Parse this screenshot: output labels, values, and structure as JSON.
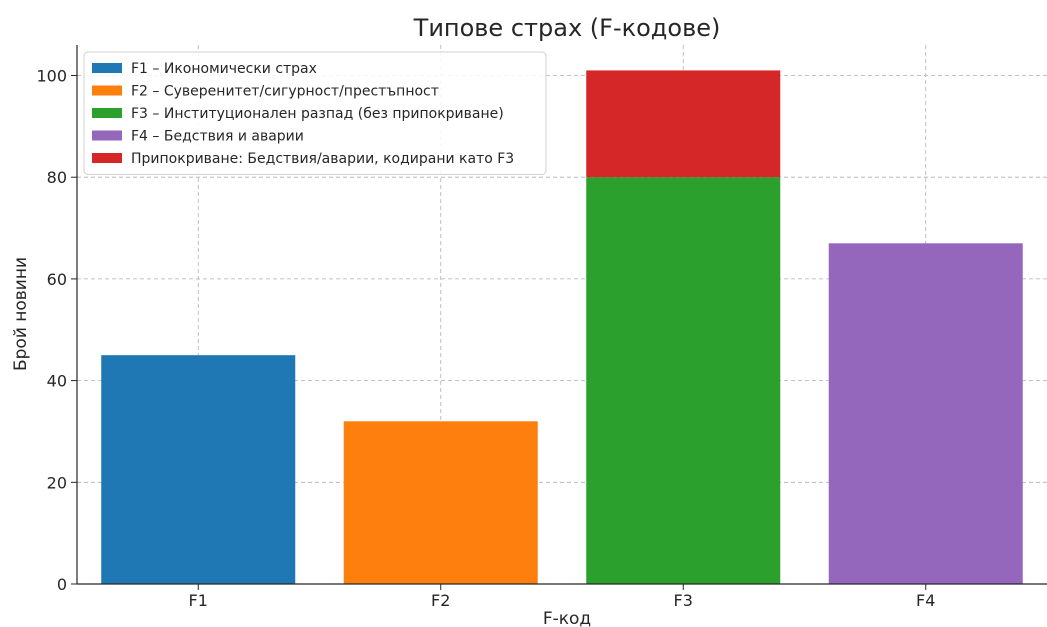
{
  "chart_data": {
    "type": "bar",
    "title": "Типове страх (F-кодове)",
    "xlabel": "F-код",
    "ylabel": "Брой новини",
    "categories": [
      "F1",
      "F2",
      "F3",
      "F4"
    ],
    "ylim": [
      0,
      106
    ],
    "yticks": [
      0,
      20,
      40,
      60,
      80,
      100
    ],
    "grid": true,
    "legend_position": "top-left",
    "series": [
      {
        "name": "F1 – Икономически страх",
        "color": "#1f77b4",
        "values": [
          45,
          0,
          0,
          0
        ]
      },
      {
        "name": "F2 – Суверенитет/сигурност/престъпност",
        "color": "#ff7f0e",
        "values": [
          0,
          32,
          0,
          0
        ]
      },
      {
        "name": "F3 – Институционален разпад (без припокриване)",
        "color": "#2ca02c",
        "values": [
          0,
          0,
          80,
          0
        ]
      },
      {
        "name": "F4 – Бедствия и аварии",
        "color": "#9467bd",
        "values": [
          0,
          0,
          0,
          67
        ]
      },
      {
        "name": "Припокриване: Бедствия/аварии, кодирани като F3",
        "color": "#d62728",
        "values": [
          0,
          0,
          21,
          0
        ],
        "stacked_on": 2
      }
    ]
  }
}
